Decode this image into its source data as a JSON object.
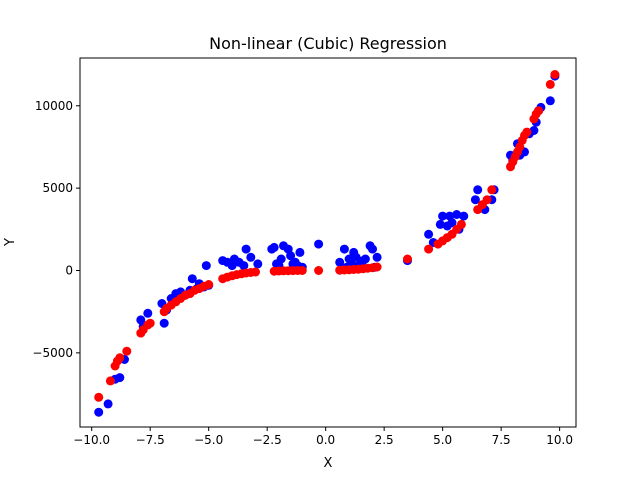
{
  "chart_data": {
    "type": "scatter",
    "title": "Non-linear (Cubic) Regression",
    "xlabel": "X",
    "ylabel": "Y",
    "xlim": [
      -10.5,
      10.7
    ],
    "ylim": [
      -9500,
      12900
    ],
    "x_ticks": [
      -10.0,
      -7.5,
      -5.0,
      -2.5,
      0.0,
      2.5,
      5.0,
      7.5,
      10.0
    ],
    "x_tick_labels": [
      "−10.0",
      "−7.5",
      "−5.0",
      "−2.5",
      "0.0",
      "2.5",
      "5.0",
      "7.5",
      "10.0"
    ],
    "y_ticks": [
      -5000,
      0,
      5000,
      10000
    ],
    "y_tick_labels": [
      "−5000",
      "0",
      "5000",
      "10000"
    ],
    "grid": false,
    "series": [
      {
        "color": "#0000ff",
        "points": [
          [
            -9.7,
            -8600
          ],
          [
            -9.3,
            -8100
          ],
          [
            -9.0,
            -6600
          ],
          [
            -8.8,
            -6500
          ],
          [
            -8.6,
            -5400
          ],
          [
            -7.9,
            -3000
          ],
          [
            -7.8,
            -3400
          ],
          [
            -7.6,
            -2600
          ],
          [
            -7.0,
            -2000
          ],
          [
            -6.9,
            -3200
          ],
          [
            -6.8,
            -2400
          ],
          [
            -6.6,
            -1700
          ],
          [
            -6.4,
            -1400
          ],
          [
            -6.2,
            -1300
          ],
          [
            -6.0,
            -1500
          ],
          [
            -5.8,
            -1200
          ],
          [
            -5.7,
            -500
          ],
          [
            -5.5,
            -1100
          ],
          [
            -5.4,
            -800
          ],
          [
            -5.2,
            -1000
          ],
          [
            -5.1,
            300
          ],
          [
            -5.0,
            -900
          ],
          [
            -4.4,
            600
          ],
          [
            -4.2,
            500
          ],
          [
            -4.0,
            300
          ],
          [
            -3.9,
            700
          ],
          [
            -3.7,
            500
          ],
          [
            -3.5,
            300
          ],
          [
            -3.4,
            1300
          ],
          [
            -3.2,
            800
          ],
          [
            -2.9,
            400
          ],
          [
            -2.3,
            1300
          ],
          [
            -2.2,
            1400
          ],
          [
            -2.1,
            400
          ],
          [
            -2.0,
            300
          ],
          [
            -1.9,
            700
          ],
          [
            -1.8,
            1500
          ],
          [
            -1.6,
            1300
          ],
          [
            -1.5,
            900
          ],
          [
            -1.4,
            400
          ],
          [
            -1.3,
            500
          ],
          [
            -1.2,
            300
          ],
          [
            -1.1,
            1100
          ],
          [
            -1.0,
            200
          ],
          [
            -0.3,
            1600
          ],
          [
            0.6,
            500
          ],
          [
            0.8,
            1300
          ],
          [
            0.9,
            200
          ],
          [
            1.0,
            700
          ],
          [
            1.1,
            400
          ],
          [
            1.2,
            1100
          ],
          [
            1.3,
            800
          ],
          [
            1.4,
            300
          ],
          [
            1.5,
            400
          ],
          [
            1.6,
            600
          ],
          [
            1.7,
            700
          ],
          [
            1.9,
            1500
          ],
          [
            2.0,
            1300
          ],
          [
            2.1,
            200
          ],
          [
            2.2,
            800
          ],
          [
            3.5,
            600
          ],
          [
            4.4,
            2200
          ],
          [
            4.6,
            1700
          ],
          [
            4.9,
            2800
          ],
          [
            5.0,
            3300
          ],
          [
            5.2,
            2700
          ],
          [
            5.3,
            3300
          ],
          [
            5.4,
            2900
          ],
          [
            5.6,
            3400
          ],
          [
            5.7,
            2500
          ],
          [
            5.9,
            3300
          ],
          [
            6.4,
            4300
          ],
          [
            6.5,
            4900
          ],
          [
            6.8,
            3700
          ],
          [
            7.1,
            4300
          ],
          [
            7.2,
            4900
          ],
          [
            7.9,
            7000
          ],
          [
            8.0,
            6700
          ],
          [
            8.2,
            7700
          ],
          [
            8.3,
            7000
          ],
          [
            8.5,
            7200
          ],
          [
            8.7,
            8300
          ],
          [
            8.9,
            8500
          ],
          [
            9.0,
            9000
          ],
          [
            9.1,
            9700
          ],
          [
            9.2,
            9900
          ],
          [
            9.6,
            10300
          ],
          [
            9.8,
            11800
          ]
        ]
      },
      {
        "color": "#ff0000",
        "points": [
          [
            -9.7,
            -7700
          ],
          [
            -9.2,
            -6700
          ],
          [
            -9.0,
            -5800
          ],
          [
            -8.9,
            -5500
          ],
          [
            -8.8,
            -5300
          ],
          [
            -8.5,
            -4900
          ],
          [
            -7.9,
            -3800
          ],
          [
            -7.8,
            -3600
          ],
          [
            -7.6,
            -3300
          ],
          [
            -7.5,
            -3200
          ],
          [
            -6.9,
            -2500
          ],
          [
            -6.8,
            -2300
          ],
          [
            -6.6,
            -2100
          ],
          [
            -6.4,
            -1900
          ],
          [
            -6.2,
            -1700
          ],
          [
            -6.0,
            -1500
          ],
          [
            -5.8,
            -1400
          ],
          [
            -5.6,
            -1200
          ],
          [
            -5.4,
            -1100
          ],
          [
            -5.2,
            -950
          ],
          [
            -5.0,
            -850
          ],
          [
            -4.4,
            -500
          ],
          [
            -4.2,
            -400
          ],
          [
            -4.0,
            -320
          ],
          [
            -3.8,
            -250
          ],
          [
            -3.6,
            -200
          ],
          [
            -3.4,
            -150
          ],
          [
            -3.2,
            -120
          ],
          [
            -3.0,
            -90
          ],
          [
            -2.2,
            -40
          ],
          [
            -2.0,
            -30
          ],
          [
            -1.8,
            -20
          ],
          [
            -1.6,
            -10
          ],
          [
            -1.4,
            -5
          ],
          [
            -1.2,
            0
          ],
          [
            -1.0,
            0
          ],
          [
            -0.3,
            0
          ],
          [
            0.6,
            20
          ],
          [
            0.8,
            30
          ],
          [
            1.0,
            40
          ],
          [
            1.2,
            60
          ],
          [
            1.4,
            80
          ],
          [
            1.6,
            110
          ],
          [
            1.8,
            140
          ],
          [
            2.0,
            170
          ],
          [
            2.2,
            210
          ],
          [
            3.5,
            700
          ],
          [
            4.4,
            1300
          ],
          [
            4.8,
            1600
          ],
          [
            5.0,
            1800
          ],
          [
            5.2,
            2000
          ],
          [
            5.4,
            2200
          ],
          [
            5.6,
            2500
          ],
          [
            5.8,
            2800
          ],
          [
            6.5,
            3700
          ],
          [
            6.7,
            4000
          ],
          [
            6.9,
            4300
          ],
          [
            7.1,
            4900
          ],
          [
            7.9,
            6300
          ],
          [
            8.0,
            6600
          ],
          [
            8.1,
            6900
          ],
          [
            8.2,
            7200
          ],
          [
            8.3,
            7500
          ],
          [
            8.4,
            7900
          ],
          [
            8.5,
            8200
          ],
          [
            8.6,
            8400
          ],
          [
            8.9,
            9200
          ],
          [
            9.0,
            9500
          ],
          [
            9.1,
            9700
          ],
          [
            9.6,
            11300
          ],
          [
            9.8,
            11900
          ]
        ]
      }
    ]
  }
}
